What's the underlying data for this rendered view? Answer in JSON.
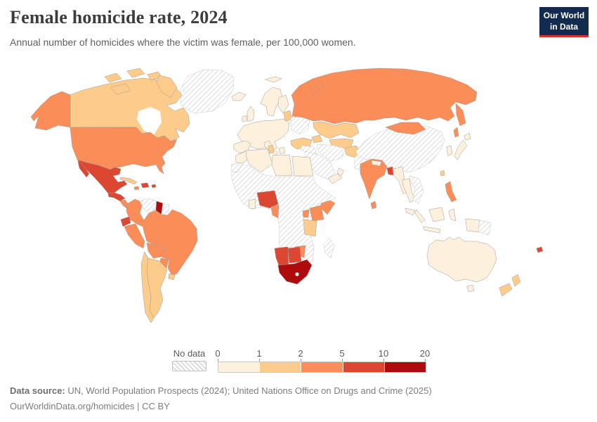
{
  "header": {
    "title": "Female homicide rate, 2024",
    "subtitle": "Annual number of homicides where the victim was female, per 100,000 women.",
    "logo": {
      "line1": "Our World",
      "line2": "in Data",
      "bg_color": "#122b4e",
      "accent_color": "#d0342c"
    }
  },
  "legend": {
    "no_data_label": "No data",
    "tick_labels": [
      "0",
      "1",
      "2",
      "5",
      "10",
      "20"
    ],
    "bins": [
      {
        "label": "0-1",
        "color": "#fdf0dc"
      },
      {
        "label": "1-2",
        "color": "#fdcc8a"
      },
      {
        "label": "2-5",
        "color": "#fb8d59"
      },
      {
        "label": "5-10",
        "color": "#dc4732"
      },
      {
        "label": "10-20",
        "color": "#ae0c0c"
      }
    ]
  },
  "footer": {
    "source_label": "Data source:",
    "source_text": " UN, World Population Prospects (2024); United Nations Office on Drugs and Crime (2025)",
    "attribution": "OurWorldinData.org/homicides | CC BY"
  },
  "chart_data": {
    "type": "choropleth-map",
    "title": "Female homicide rate, 2024",
    "unit": "homicides per 100,000 women",
    "year": 2024,
    "color_scale": {
      "thresholds": [
        0,
        1,
        2,
        5,
        10,
        20
      ],
      "no_data": "hatched"
    },
    "regions": [
      {
        "id": "greenland",
        "name": "Greenland",
        "bin": "no-data"
      },
      {
        "id": "canada",
        "name": "Canada",
        "bin": "1-2"
      },
      {
        "id": "united-states",
        "name": "United States",
        "bin": "2-5"
      },
      {
        "id": "mexico",
        "name": "Mexico",
        "bin": "5-10"
      },
      {
        "id": "central-america-north",
        "name": "Guatemala & Honduras",
        "bin": "5-10"
      },
      {
        "id": "central-america-south",
        "name": "Nicaragua, Costa Rica & Panama",
        "bin": "2-5"
      },
      {
        "id": "cuba",
        "name": "Cuba",
        "bin": "1-2"
      },
      {
        "id": "jamaica",
        "name": "Jamaica",
        "bin": "2-5"
      },
      {
        "id": "hispaniola",
        "name": "Haiti & Dominican Republic",
        "bin": "5-10"
      },
      {
        "id": "puerto-rico",
        "name": "Puerto Rico",
        "bin": "5-10"
      },
      {
        "id": "colombia",
        "name": "Colombia",
        "bin": "2-5"
      },
      {
        "id": "venezuela",
        "name": "Venezuela",
        "bin": "no-data"
      },
      {
        "id": "guyana",
        "name": "Guyana",
        "bin": "10-20"
      },
      {
        "id": "suriname",
        "name": "Suriname",
        "bin": "no-data"
      },
      {
        "id": "ecuador",
        "name": "Ecuador",
        "bin": "5-10"
      },
      {
        "id": "peru",
        "name": "Peru",
        "bin": "2-5"
      },
      {
        "id": "brazil",
        "name": "Brazil",
        "bin": "2-5"
      },
      {
        "id": "bolivia",
        "name": "Bolivia",
        "bin": "2-5"
      },
      {
        "id": "paraguay",
        "name": "Paraguay",
        "bin": "2-5"
      },
      {
        "id": "uruguay",
        "name": "Uruguay",
        "bin": "1-2"
      },
      {
        "id": "argentina",
        "name": "Argentina",
        "bin": "1-2"
      },
      {
        "id": "chile",
        "name": "Chile",
        "bin": "1-2"
      },
      {
        "id": "iceland",
        "name": "Iceland",
        "bin": "0-1"
      },
      {
        "id": "united-kingdom",
        "name": "United Kingdom",
        "bin": "0-1"
      },
      {
        "id": "ireland",
        "name": "Ireland",
        "bin": "0-1"
      },
      {
        "id": "scandinavia",
        "name": "Norway & Sweden",
        "bin": "0-1"
      },
      {
        "id": "svalbard",
        "name": "Svalbard",
        "bin": "0-1"
      },
      {
        "id": "finland",
        "name": "Finland",
        "bin": "0-1"
      },
      {
        "id": "europe-mainland",
        "name": "Western & Central Europe",
        "bin": "0-1"
      },
      {
        "id": "iberia",
        "name": "Spain & Portugal",
        "bin": "0-1"
      },
      {
        "id": "italy",
        "name": "Italy",
        "bin": "0-1"
      },
      {
        "id": "greece",
        "name": "Greece",
        "bin": "0-1"
      },
      {
        "id": "baltics",
        "name": "Baltic states",
        "bin": "1-2"
      },
      {
        "id": "ukraine-belarus",
        "name": "Ukraine & Belarus",
        "bin": "no-data"
      },
      {
        "id": "turkey",
        "name": "Turkey",
        "bin": "1-2"
      },
      {
        "id": "caucasus",
        "name": "Caucasus",
        "bin": "1-2"
      },
      {
        "id": "russia",
        "name": "Russia",
        "bin": "2-5"
      },
      {
        "id": "kazakhstan",
        "name": "Kazakhstan",
        "bin": "1-2"
      },
      {
        "id": "central-asia",
        "name": "Central Asia",
        "bin": "1-2"
      },
      {
        "id": "afghanistan",
        "name": "Afghanistan",
        "bin": "1-2"
      },
      {
        "id": "pakistan",
        "name": "Pakistan",
        "bin": "no-data"
      },
      {
        "id": "iraq-syria",
        "name": "Iraq & Syria",
        "bin": "no-data"
      },
      {
        "id": "iran",
        "name": "Iran",
        "bin": "no-data"
      },
      {
        "id": "saudi-arabia",
        "name": "Saudi Arabia",
        "bin": "no-data"
      },
      {
        "id": "yemen",
        "name": "Yemen",
        "bin": "0-1"
      },
      {
        "id": "oman",
        "name": "Oman",
        "bin": "0-1"
      },
      {
        "id": "morocco",
        "name": "Morocco",
        "bin": "0-1"
      },
      {
        "id": "western-sahara",
        "name": "Western Sahara",
        "bin": "no-data"
      },
      {
        "id": "algeria",
        "name": "Algeria",
        "bin": "0-1"
      },
      {
        "id": "tunisia",
        "name": "Tunisia",
        "bin": "1-2"
      },
      {
        "id": "libya",
        "name": "Libya",
        "bin": "0-1"
      },
      {
        "id": "egypt",
        "name": "Egypt",
        "bin": "0-1"
      },
      {
        "id": "sub-saharan-africa",
        "name": "Sub-Saharan Africa (no data)",
        "bin": "no-data"
      },
      {
        "id": "ghana",
        "name": "Ghana",
        "bin": "0-1"
      },
      {
        "id": "nigeria",
        "name": "Nigeria",
        "bin": "5-10"
      },
      {
        "id": "cameroon",
        "name": "Cameroon",
        "bin": "2-5"
      },
      {
        "id": "uganda",
        "name": "Uganda",
        "bin": "2-5"
      },
      {
        "id": "kenya",
        "name": "Kenya",
        "bin": "2-5"
      },
      {
        "id": "somalia",
        "name": "Somalia",
        "bin": "2-5"
      },
      {
        "id": "tanzania",
        "name": "Tanzania",
        "bin": "1-2"
      },
      {
        "id": "zimbabwe",
        "name": "Zimbabwe",
        "bin": "2-5"
      },
      {
        "id": "namibia",
        "name": "Namibia",
        "bin": "5-10"
      },
      {
        "id": "botswana",
        "name": "Botswana",
        "bin": "5-10"
      },
      {
        "id": "south-africa",
        "name": "South Africa",
        "bin": "10-20"
      },
      {
        "id": "madagascar",
        "name": "Madagascar",
        "bin": "no-data"
      },
      {
        "id": "china",
        "name": "China",
        "bin": "no-data"
      },
      {
        "id": "mongolia",
        "name": "Mongolia",
        "bin": "2-5"
      },
      {
        "id": "india",
        "name": "India",
        "bin": "2-5"
      },
      {
        "id": "nepal",
        "name": "Nepal",
        "bin": "0-1"
      },
      {
        "id": "bangladesh",
        "name": "Bangladesh",
        "bin": "5-10"
      },
      {
        "id": "sri-lanka",
        "name": "Sri Lanka",
        "bin": "2-5"
      },
      {
        "id": "myanmar",
        "name": "Myanmar",
        "bin": "0-1"
      },
      {
        "id": "thailand",
        "name": "Thailand",
        "bin": "0-1"
      },
      {
        "id": "indochina",
        "name": "Laos, Cambodia & Vietnam",
        "bin": "no-data"
      },
      {
        "id": "malaysia",
        "name": "Malaysia",
        "bin": "0-1"
      },
      {
        "id": "indonesia",
        "name": "Indonesia",
        "bin": "0-1"
      },
      {
        "id": "papua-new-guinea",
        "name": "Papua New Guinea",
        "bin": "no-data"
      },
      {
        "id": "philippines",
        "name": "Philippines",
        "bin": "2-5"
      },
      {
        "id": "japan",
        "name": "Japan",
        "bin": "0-1"
      },
      {
        "id": "south-korea",
        "name": "South Korea",
        "bin": "0-1"
      },
      {
        "id": "taiwan",
        "name": "Taiwan",
        "bin": "1-2"
      },
      {
        "id": "australia",
        "name": "Australia",
        "bin": "0-1"
      },
      {
        "id": "new-zealand",
        "name": "New Zealand",
        "bin": "1-2"
      },
      {
        "id": "fiji",
        "name": "Fiji",
        "bin": "5-10"
      }
    ]
  }
}
